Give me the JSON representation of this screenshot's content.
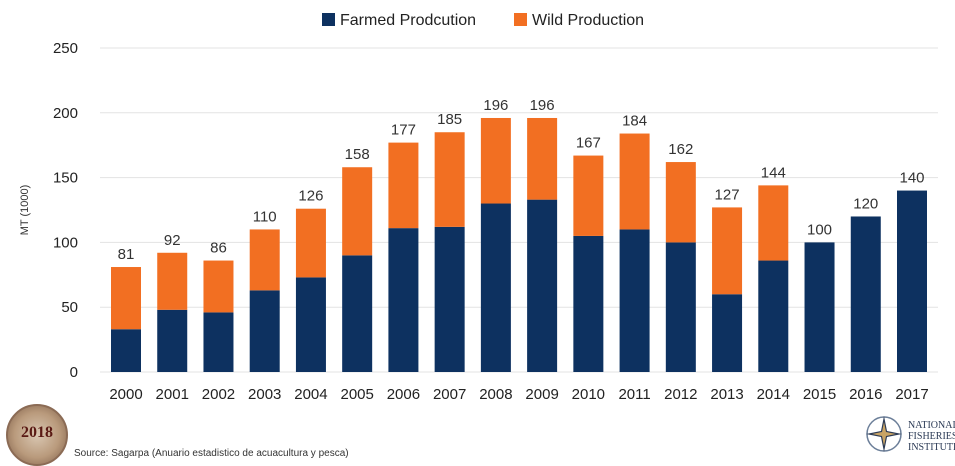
{
  "chart_data": {
    "type": "bar",
    "stacked": true,
    "categories": [
      "2000",
      "2001",
      "2002",
      "2003",
      "2004",
      "2005",
      "2006",
      "2007",
      "2008",
      "2009",
      "2010",
      "2011",
      "2012",
      "2013",
      "2014",
      "2015",
      "2016",
      "2017"
    ],
    "series": [
      {
        "name": "Farmed Prodcution",
        "color": "#0d3160",
        "values": [
          33,
          48,
          46,
          63,
          73,
          90,
          111,
          112,
          130,
          133,
          105,
          110,
          100,
          60,
          86,
          100,
          120,
          140
        ]
      },
      {
        "name": "Wild Production",
        "color": "#f26f22",
        "values": [
          48,
          44,
          40,
          47,
          53,
          68,
          66,
          73,
          66,
          63,
          62,
          74,
          62,
          67,
          58,
          0,
          0,
          0
        ]
      }
    ],
    "totals": [
      81,
      92,
      86,
      110,
      126,
      158,
      177,
      185,
      196,
      196,
      167,
      184,
      162,
      127,
      144,
      100,
      120,
      140
    ],
    "ylabel": "MT (1000)",
    "ylim": [
      0,
      250
    ],
    "yticks": [
      0,
      50,
      100,
      150,
      200,
      250
    ],
    "grid": true,
    "legend": "top-center"
  },
  "footer": {
    "source": "Source: Sagarpa (Anuario estadistico de acuacultura y pesca)",
    "logo_left_year": "2018",
    "logo_right_text": "NATIONAL\nFISHERIES\nINSTITUTE"
  }
}
